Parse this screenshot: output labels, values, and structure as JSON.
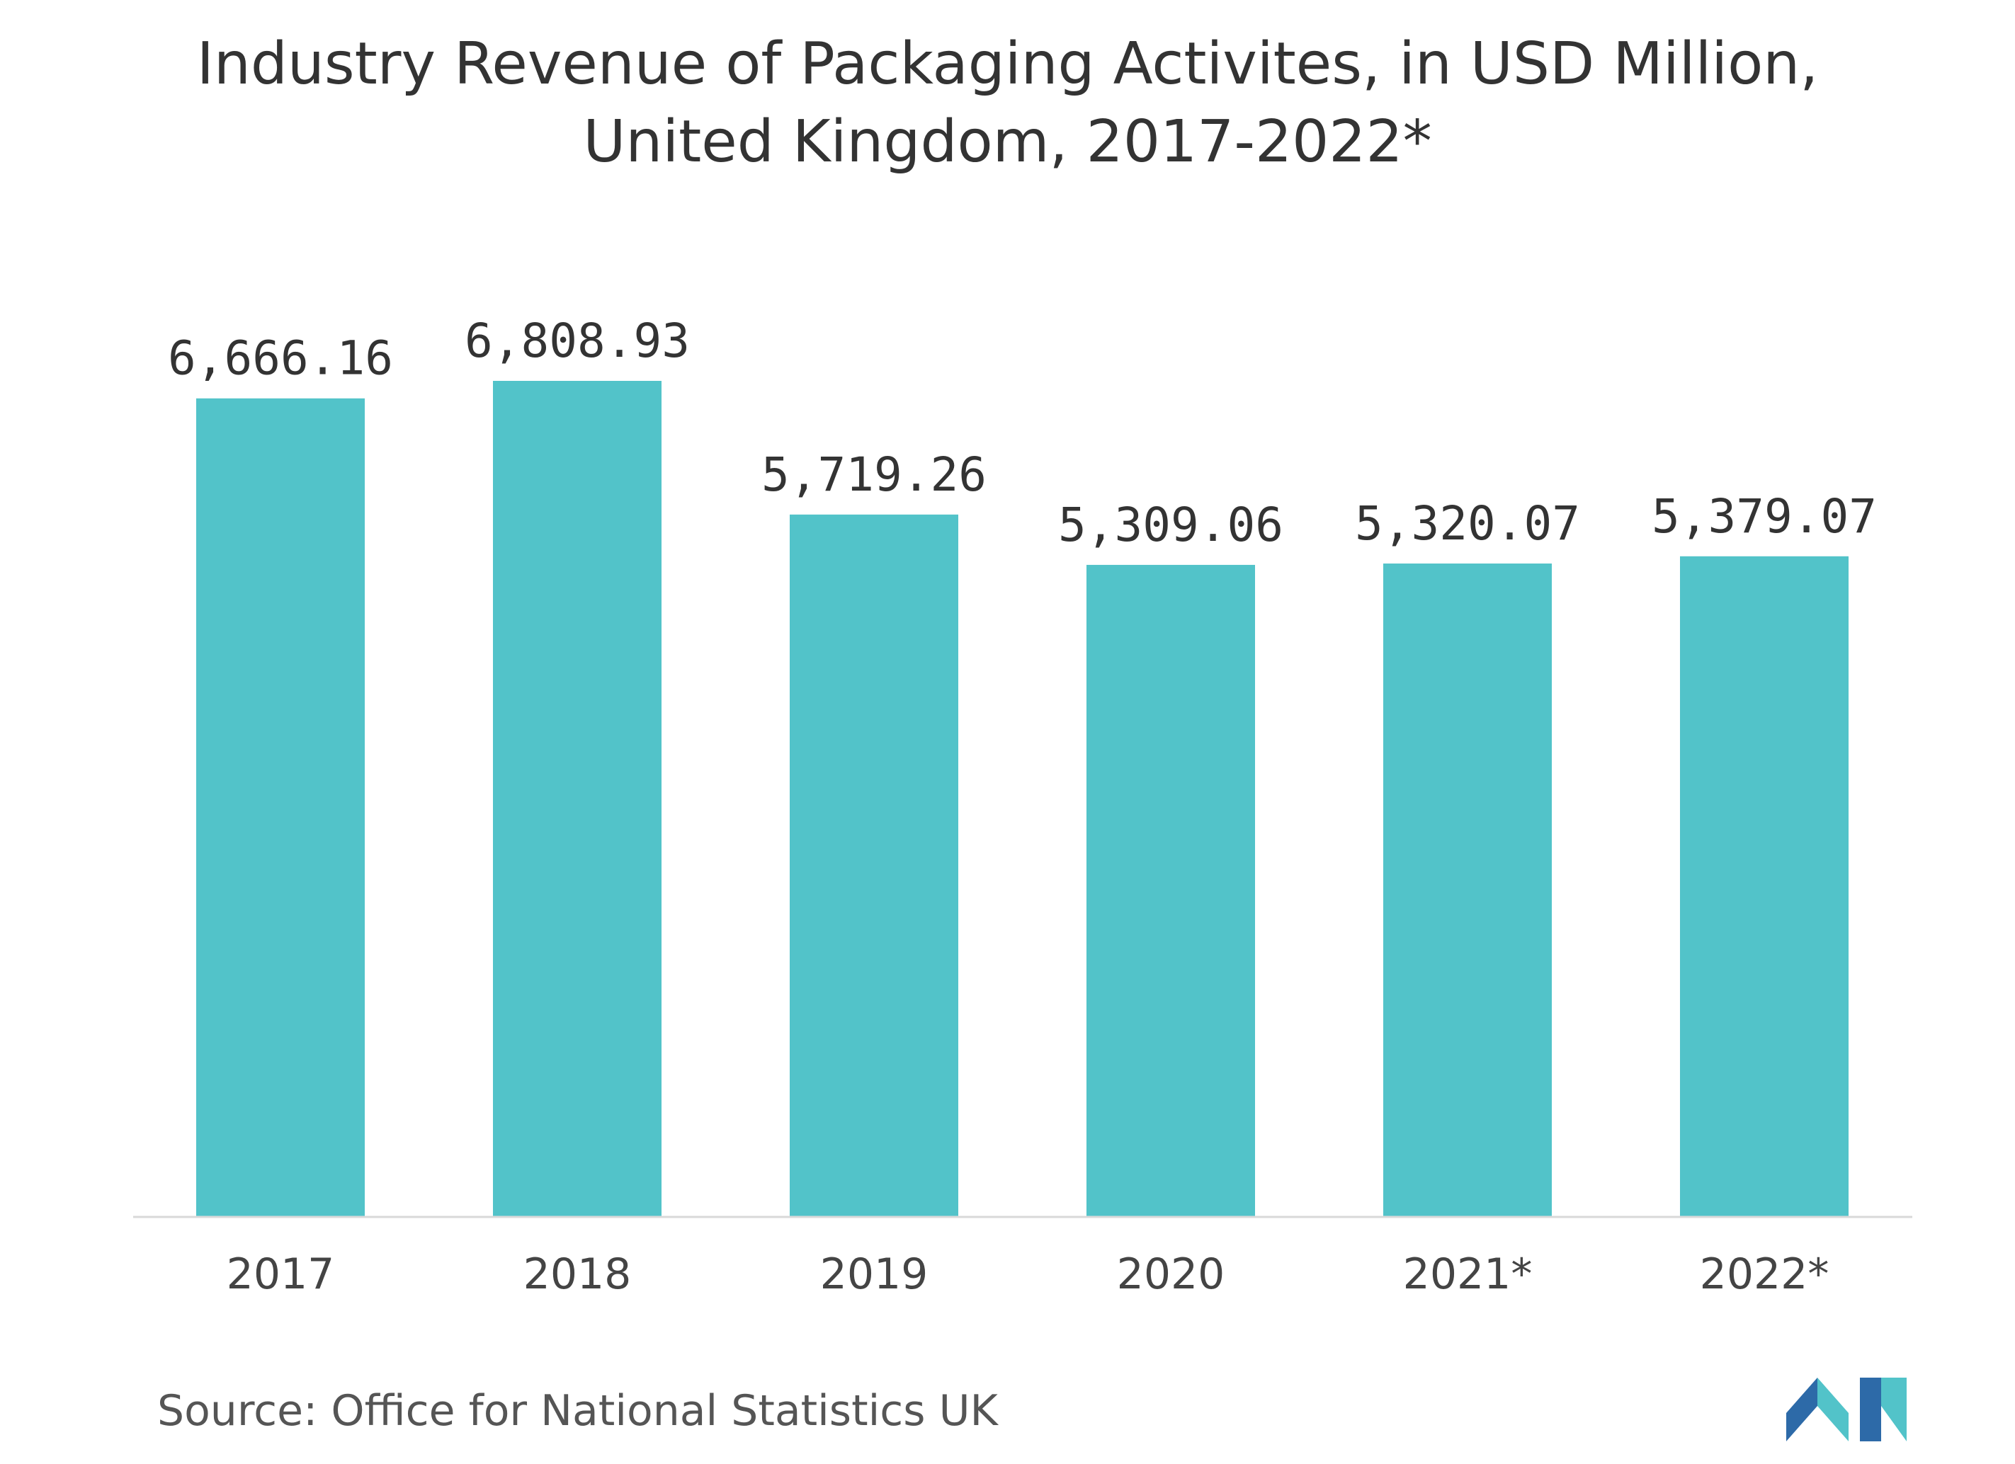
{
  "chart_data": {
    "type": "bar",
    "title_lines": [
      "Industry Revenue of Packaging Activites, in USD Million,",
      "United Kingdom, 2017-2022*"
    ],
    "categories": [
      "2017",
      "2018",
      "2019",
      "2020",
      "2021*",
      "2022*"
    ],
    "values": [
      6666.16,
      6808.93,
      5719.26,
      5309.06,
      5320.07,
      5379.07
    ],
    "value_labels": [
      "6,666.16",
      "6,808.93",
      "5,719.26",
      "5,309.06",
      "5,320.07",
      "5,379.07"
    ],
    "xlabel": "",
    "ylabel": "",
    "ylim": [
      0,
      6808.93
    ],
    "grid": false,
    "legend": "none",
    "bar_color": "#52c3c9",
    "axis_color": "#d9d9d9"
  },
  "source": "Source: Office for National Statistics UK",
  "logo": {
    "icon": "mordor-intelligence-logo-icon",
    "colors": [
      "#2d6aa8",
      "#52c3c9"
    ]
  }
}
